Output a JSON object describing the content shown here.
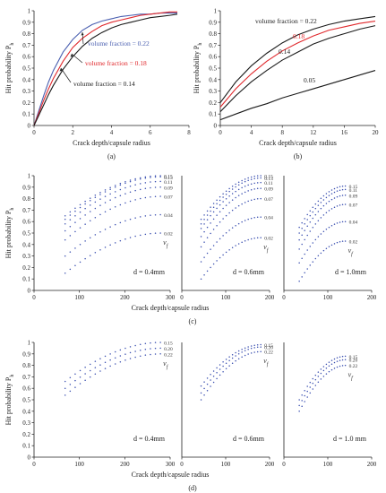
{
  "colors": {
    "axis": "#222222",
    "black_line": "#1a1a1a",
    "red_line": "#e0282c",
    "blue_line": "#4a5fb0",
    "dots": "#3a4fb0"
  },
  "chart_data": [
    {
      "id": "a",
      "type": "line",
      "caption": "(a)",
      "xlabel": "Crack depth/capsule radius",
      "ylabel": "Hit probability P",
      "ylabel_sub": "h",
      "xlim": [
        0,
        8
      ],
      "ylim": [
        0,
        1
      ],
      "xticks": [
        "0",
        "2",
        "4",
        "6",
        "8"
      ],
      "yticks": [
        "0",
        "0.1",
        "0.2",
        "0.3",
        "0.4",
        "0.5",
        "0.6",
        "0.7",
        "0.8",
        "0.9",
        "1"
      ],
      "x": [
        0,
        0.25,
        0.5,
        0.75,
        1,
        1.5,
        2,
        2.5,
        3,
        3.5,
        4,
        4.5,
        5,
        5.5,
        6,
        6.5,
        7,
        7.4
      ],
      "series": [
        {
          "name": "volume fraction = 0.22",
          "color": "#4a5fb0",
          "values": [
            0,
            0.13,
            0.26,
            0.38,
            0.48,
            0.64,
            0.75,
            0.83,
            0.88,
            0.91,
            0.93,
            0.95,
            0.96,
            0.97,
            0.97,
            0.98,
            0.98,
            0.98
          ]
        },
        {
          "name": "volume fraction = 0.18",
          "color": "#e0282c",
          "values": [
            0,
            0.11,
            0.22,
            0.32,
            0.41,
            0.56,
            0.68,
            0.76,
            0.82,
            0.87,
            0.9,
            0.92,
            0.94,
            0.96,
            0.97,
            0.98,
            0.99,
            0.99
          ]
        },
        {
          "name": "volume fraction = 0.14",
          "color": "#1a1a1a",
          "values": [
            0,
            0.09,
            0.18,
            0.27,
            0.35,
            0.49,
            0.6,
            0.69,
            0.76,
            0.81,
            0.85,
            0.88,
            0.9,
            0.92,
            0.94,
            0.95,
            0.96,
            0.97
          ]
        }
      ]
    },
    {
      "id": "b",
      "type": "line",
      "caption": "(b)",
      "xlabel": "Crack depth/capsule radius",
      "ylabel": "Hit probability P",
      "ylabel_sub": "h",
      "xlim": [
        0,
        20
      ],
      "ylim": [
        0,
        1
      ],
      "xticks": [
        "0",
        "4",
        "8",
        "12",
        "16",
        "20"
      ],
      "yticks": [
        "0",
        "0.1",
        "0.2",
        "0.3",
        "0.4",
        "0.5",
        "0.6",
        "0.7",
        "0.8",
        "0.9",
        "1"
      ],
      "x": [
        0,
        2,
        4,
        6,
        8,
        10,
        12,
        14,
        16,
        18,
        20
      ],
      "series": [
        {
          "name": "volume fraction = 0.22",
          "color": "#1a1a1a",
          "values": [
            0.2,
            0.38,
            0.52,
            0.63,
            0.72,
            0.79,
            0.84,
            0.88,
            0.91,
            0.93,
            0.95
          ]
        },
        {
          "name": "0.18",
          "color": "#e0282c",
          "values": [
            0.16,
            0.32,
            0.45,
            0.56,
            0.65,
            0.72,
            0.78,
            0.83,
            0.86,
            0.89,
            0.91
          ]
        },
        {
          "name": "0.14",
          "color": "#1a1a1a",
          "values": [
            0.12,
            0.26,
            0.38,
            0.48,
            0.57,
            0.64,
            0.71,
            0.76,
            0.8,
            0.84,
            0.87
          ]
        },
        {
          "name": "0.05",
          "color": "#1a1a1a",
          "values": [
            0.05,
            0.1,
            0.15,
            0.19,
            0.24,
            0.28,
            0.32,
            0.36,
            0.4,
            0.44,
            0.48
          ]
        }
      ]
    },
    {
      "id": "c",
      "type": "scatter",
      "caption": "(c)",
      "xlabel": "Crack depth/capsule  radius",
      "ylabel": "Hit probability P",
      "ylabel_sub": "h",
      "ylim": [
        0,
        1
      ],
      "yticks": [
        "0",
        "0.1",
        "0.2",
        "0.3",
        "0.4",
        "0.5",
        "0.6",
        "0.7",
        "0.8",
        "0.9",
        "1"
      ],
      "legend_symbol": "v",
      "legend_symbol_sub": "f",
      "panels": [
        {
          "label": "d = 0.4mm",
          "xlim": [
            0,
            350
          ],
          "xticks": [
            "0",
            "100",
            "200",
            "300"
          ],
          "x_range": [
            80,
            325
          ],
          "n_points": 20,
          "series": [
            {
              "name": "0.15",
              "start": 0.65,
              "end": 1.0
            },
            {
              "name": "0.13",
              "start": 0.62,
              "end": 0.99
            },
            {
              "name": "0.11",
              "start": 0.58,
              "end": 0.95
            },
            {
              "name": "0.09",
              "start": 0.52,
              "end": 0.9
            },
            {
              "name": "0.07",
              "start": 0.44,
              "end": 0.82
            },
            {
              "name": "0.04",
              "start": 0.3,
              "end": 0.66
            },
            {
              "name": "0.02",
              "start": 0.15,
              "end": 0.5
            }
          ]
        },
        {
          "label": "d = 0.6mm",
          "xlim": [
            0,
            250
          ],
          "xticks": [
            "0",
            "100",
            "200"
          ],
          "x_range": [
            55,
            225
          ],
          "n_points": 20,
          "series": [
            {
              "name": "0.15",
              "start": 0.62,
              "end": 1.0
            },
            {
              "name": "0.13",
              "start": 0.58,
              "end": 0.98
            },
            {
              "name": "0.11",
              "start": 0.54,
              "end": 0.94
            },
            {
              "name": "0.09",
              "start": 0.47,
              "end": 0.89
            },
            {
              "name": "0.07",
              "start": 0.38,
              "end": 0.8
            },
            {
              "name": "0.04",
              "start": 0.25,
              "end": 0.64
            },
            {
              "name": "0.02",
              "start": 0.1,
              "end": 0.46
            }
          ]
        },
        {
          "label": "d = 1.0mm",
          "xlim": [
            0,
            200
          ],
          "xticks": [
            "0",
            "100",
            "200"
          ],
          "x_range": [
            35,
            140
          ],
          "n_points": 18,
          "series": [
            {
              "name": "0.15",
              "start": 0.55,
              "end": 0.91
            },
            {
              "name": "0.11",
              "start": 0.5,
              "end": 0.88
            },
            {
              "name": "0.09",
              "start": 0.44,
              "end": 0.83
            },
            {
              "name": "0.07",
              "start": 0.36,
              "end": 0.75
            },
            {
              "name": "0.04",
              "start": 0.24,
              "end": 0.6
            },
            {
              "name": "0.02",
              "start": 0.08,
              "end": 0.43
            }
          ]
        }
      ]
    },
    {
      "id": "d",
      "type": "scatter",
      "caption": "(d)",
      "xlabel": "Crack depth/capsule  radius",
      "ylabel": "Hit probability P",
      "ylabel_sub": "h",
      "ylim": [
        0,
        1
      ],
      "yticks": [
        "0",
        "0.1",
        "0.2",
        "0.3",
        "0.4",
        "0.5",
        "0.6",
        "0.7",
        "0.8",
        "0.9",
        "1"
      ],
      "legend_symbol": "v",
      "legend_symbol_sub": "f",
      "panels": [
        {
          "label": "d = 0.4mm",
          "xlim": [
            0,
            350
          ],
          "xticks": [
            "0",
            "100",
            "200",
            "300"
          ],
          "x_range": [
            80,
            325
          ],
          "n_points": 20,
          "series": [
            {
              "name": "0.15",
              "start": 0.66,
              "end": 1.0
            },
            {
              "name": "0.20",
              "start": 0.6,
              "end": 0.95
            },
            {
              "name": "0.22",
              "start": 0.54,
              "end": 0.9
            }
          ]
        },
        {
          "label": "d = 0.6mm",
          "xlim": [
            0,
            250
          ],
          "xticks": [
            "0",
            "100",
            "200"
          ],
          "x_range": [
            55,
            225
          ],
          "n_points": 20,
          "series": [
            {
              "name": "0.15",
              "start": 0.62,
              "end": 0.98
            },
            {
              "name": "0.20",
              "start": 0.56,
              "end": 0.96
            },
            {
              "name": "0.22",
              "start": 0.5,
              "end": 0.92
            }
          ]
        },
        {
          "label": "d = 1.0 mm",
          "xlim": [
            0,
            200
          ],
          "xticks": [
            "0",
            "100",
            "200"
          ],
          "x_range": [
            35,
            140
          ],
          "n_points": 18,
          "series": [
            {
              "name": "0.15",
              "start": 0.5,
              "end": 0.88
            },
            {
              "name": "0.20",
              "start": 0.45,
              "end": 0.85
            },
            {
              "name": "0.22",
              "start": 0.4,
              "end": 0.8
            }
          ]
        }
      ]
    }
  ]
}
